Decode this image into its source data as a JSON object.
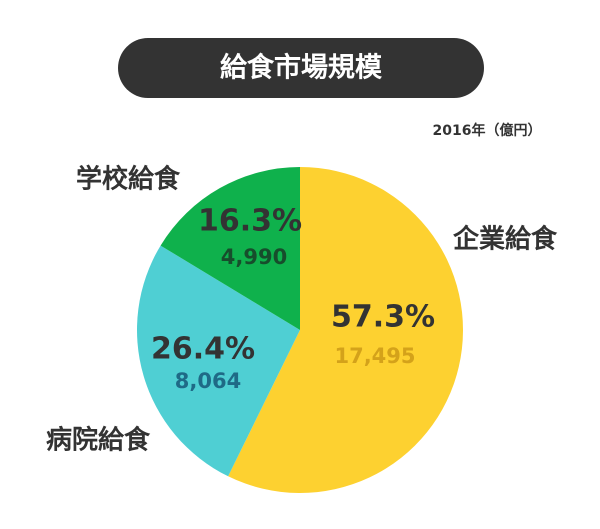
{
  "chart_data": {
    "type": "pie",
    "title": "給食市場規模",
    "subtitle": "2016年（億円）",
    "categories": [
      "企業給食",
      "病院給食",
      "学校給食"
    ],
    "values": [
      17495,
      8064,
      4990
    ],
    "value_labels": [
      "17,495",
      "8,064",
      "4,990"
    ],
    "percents": [
      57.3,
      26.4,
      16.3
    ],
    "percent_labels": [
      "57.3%",
      "26.4%",
      "16.3%"
    ],
    "colors": [
      "#fdd130",
      "#4fcfd3",
      "#0fb14c"
    ],
    "value_label_colors": [
      "#d4a21a",
      "#1f6a86",
      "#174d2c"
    ]
  }
}
